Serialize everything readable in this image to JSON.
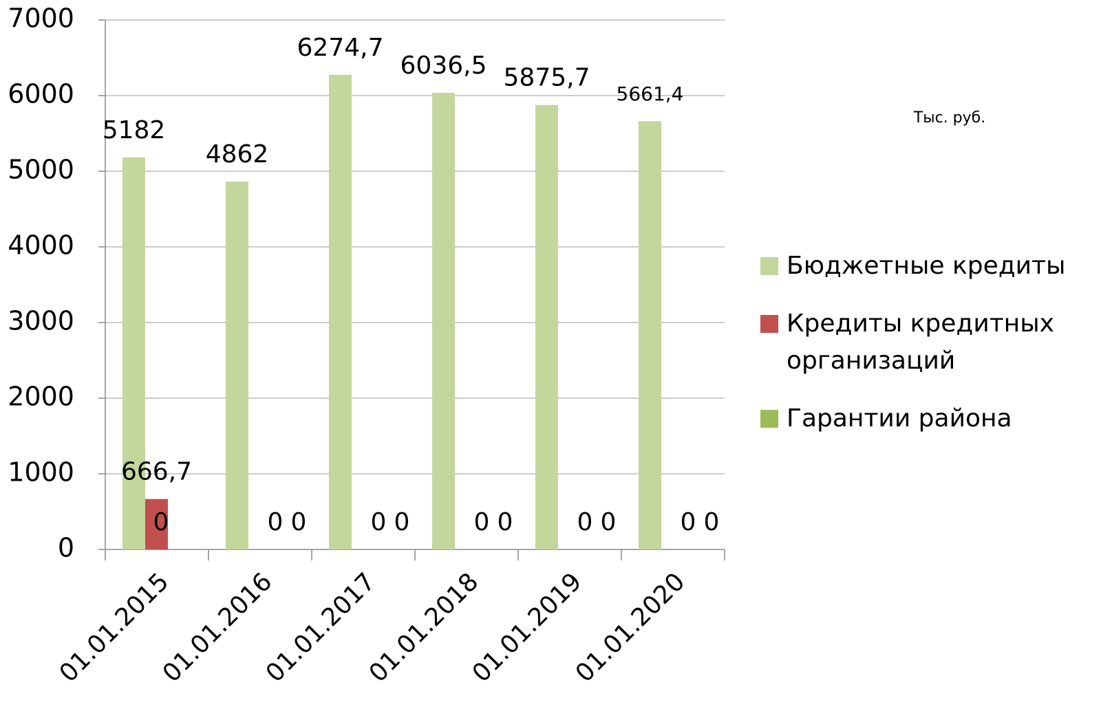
{
  "chart_data": {
    "type": "bar",
    "annotation": "Тыс. руб.",
    "categories": [
      "01.01.2015",
      "01.01.2016",
      "01.01.2017",
      "01.01.2018",
      "01.01.2019",
      "01.01.2020"
    ],
    "series": [
      {
        "name": "Бюджетные кредиты",
        "color": "#c3d69b",
        "values": [
          5182,
          4862,
          6274.7,
          6036.5,
          5875.7,
          5661.4
        ],
        "value_labels": [
          "5182",
          "4862",
          "6274,7",
          "6036,5",
          "5875,7",
          "5661,4"
        ]
      },
      {
        "name": "Кредиты кредитных организаций",
        "color": "#c0504d",
        "values": [
          666.7,
          0,
          0,
          0,
          0,
          0
        ],
        "value_labels": [
          "666,7",
          "0",
          "0",
          "0",
          "0",
          "0"
        ]
      },
      {
        "name": "Гарантии района",
        "color": "#9bbb59",
        "values": [
          0,
          0,
          0,
          0,
          0,
          0
        ],
        "value_labels": [
          "0",
          "0",
          "0",
          "0",
          "0",
          "0"
        ]
      }
    ],
    "ylim": [
      0,
      7000
    ],
    "yticks": [
      0,
      1000,
      2000,
      3000,
      4000,
      5000,
      6000,
      7000
    ],
    "grid": true,
    "legend": "right"
  }
}
